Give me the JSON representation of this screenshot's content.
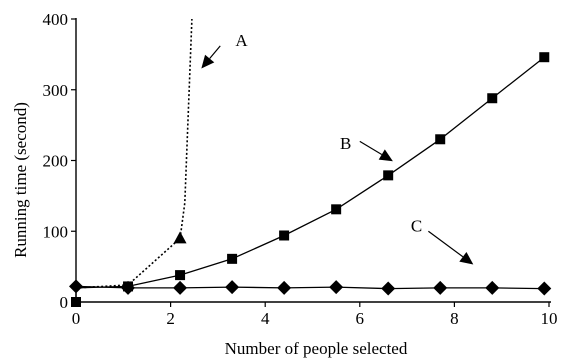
{
  "chart_data": {
    "type": "line",
    "xlabel": "Number of people selected",
    "ylabel": "Running time (second)",
    "xlim": [
      0,
      10
    ],
    "ylim": [
      0,
      400
    ],
    "x_ticks": [
      "0",
      "2",
      "4",
      "6",
      "8",
      "10"
    ],
    "y_ticks": [
      "0",
      "100",
      "200",
      "300",
      "400"
    ],
    "grid": false,
    "legend": "none",
    "series": [
      {
        "name": "A",
        "marker": "triangle",
        "line_style": "dotted",
        "color": "#000000",
        "points": [
          {
            "x": 0,
            "y": 20
          },
          {
            "x": 1.1,
            "y": 24
          },
          {
            "x": 2.2,
            "y": 90
          },
          {
            "x": 2.3,
            "y": 140
          },
          {
            "x": 2.45,
            "y": 400
          }
        ],
        "marker_indices": [
          2
        ]
      },
      {
        "name": "B",
        "marker": "square",
        "line_style": "solid",
        "color": "#000000",
        "points": [
          {
            "x": 0,
            "y": 0
          },
          {
            "x": 0,
            "y": 20
          },
          {
            "x": 1.1,
            "y": 22
          },
          {
            "x": 2.2,
            "y": 38
          },
          {
            "x": 3.3,
            "y": 61
          },
          {
            "x": 4.4,
            "y": 94
          },
          {
            "x": 5.5,
            "y": 131
          },
          {
            "x": 6.6,
            "y": 179
          },
          {
            "x": 7.7,
            "y": 230
          },
          {
            "x": 8.8,
            "y": 288
          },
          {
            "x": 9.9,
            "y": 346
          }
        ],
        "marker_indices": [
          0,
          2,
          3,
          4,
          5,
          6,
          7,
          8,
          9,
          10
        ]
      },
      {
        "name": "C",
        "marker": "diamond",
        "line_style": "solid",
        "color": "#000000",
        "points": [
          {
            "x": 0,
            "y": 22
          },
          {
            "x": 1.1,
            "y": 20
          },
          {
            "x": 2.2,
            "y": 20
          },
          {
            "x": 3.3,
            "y": 21
          },
          {
            "x": 4.4,
            "y": 20
          },
          {
            "x": 5.5,
            "y": 21
          },
          {
            "x": 6.6,
            "y": 19
          },
          {
            "x": 7.7,
            "y": 20
          },
          {
            "x": 8.8,
            "y": 20
          },
          {
            "x": 9.9,
            "y": 19
          }
        ],
        "marker_indices": [
          0,
          1,
          2,
          3,
          4,
          5,
          6,
          7,
          8,
          9
        ]
      }
    ],
    "annotations": [
      {
        "label": "A",
        "text_at": [
          3.5,
          370
        ],
        "arrow_from": [
          3.05,
          362
        ],
        "arrow_to": [
          2.65,
          330
        ]
      },
      {
        "label": "B",
        "text_at": [
          5.7,
          225
        ],
        "arrow_from": [
          6.0,
          227
        ],
        "arrow_to": [
          6.7,
          199
        ]
      },
      {
        "label": "C",
        "text_at": [
          7.2,
          108
        ],
        "arrow_from": [
          7.45,
          100
        ],
        "arrow_to": [
          8.4,
          53
        ]
      }
    ]
  }
}
